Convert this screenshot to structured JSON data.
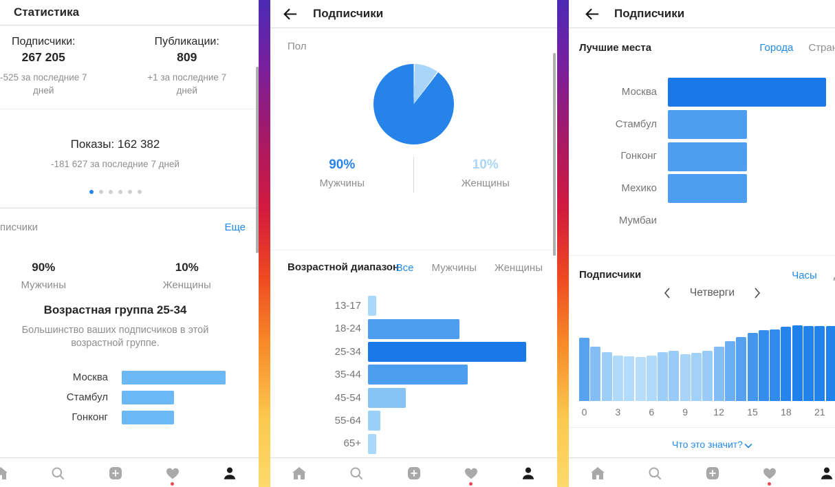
{
  "colors": {
    "accent_blue": "#2583e9",
    "link_blue": "#2189e9",
    "light_blue": "#a9d6f8",
    "text_dark": "#262626",
    "text_gray": "#8e8e8e",
    "divider": "#dbdbdb",
    "divider_light": "#efefef",
    "dot_active": "#2584e8",
    "dot_inactive": "#d0d0d0",
    "nav_inactive": "#a9a9a9",
    "nav_active": "#1b1b1b",
    "badge_red": "#ed4956",
    "scrollbar": "#9b9b9b",
    "separator_gradient": [
      "#4b2ab5",
      "#7a1f9c",
      "#a81964",
      "#d31a3e",
      "#ee4a21",
      "#f88c28",
      "#fbc94e",
      "#fdd96b"
    ]
  },
  "panel_stats": {
    "title": "Статистика",
    "stats": [
      {
        "label": "Подписчики:",
        "value": "267 205",
        "delta": "-525 за последние 7 дней"
      },
      {
        "label": "Публикации:",
        "value": "809",
        "delta": "+1 за последние 7 дней"
      }
    ],
    "impressions": {
      "headline": "Показы: 162 382",
      "delta": "-181 627 за последние 7 дней"
    },
    "pager": {
      "count": 6,
      "active": 0
    },
    "followers": {
      "section_title": "писчики",
      "more": "Еще",
      "gender": [
        {
          "value": "90%",
          "label": "Мужчины"
        },
        {
          "value": "10%",
          "label": "Женщины"
        }
      ],
      "age_headline": "Возрастная группа 25-34",
      "age_note": "Большинство ваших подписчиков в этой возрастной группе."
    }
  },
  "panel_gender": {
    "title": "Подписчики",
    "section_gender": {
      "label": "Пол",
      "legend": [
        {
          "value": "90%",
          "label": "Мужчины"
        },
        {
          "value": "10%",
          "label": "Женщины"
        }
      ]
    },
    "section_age": {
      "label": "Возрастной диапазон",
      "tabs": [
        "Все",
        "Мужчины",
        "Женщины"
      ],
      "active_tab": 0
    }
  },
  "panel_places": {
    "title": "Подписчики",
    "section_places": {
      "label": "Лучшие места",
      "tabs": [
        "Города",
        "Стран"
      ],
      "active_tab": 0
    },
    "section_hours": {
      "label": "Подписчики",
      "tabs": [
        "Часы",
        "Д"
      ],
      "active_tab": 0,
      "carousel": {
        "value": "Четверги"
      },
      "footnote": "Что это значит?"
    }
  },
  "nav": {
    "items": [
      {
        "name": "home"
      },
      {
        "name": "search"
      },
      {
        "name": "new-post"
      },
      {
        "name": "activity",
        "badge": true
      },
      {
        "name": "profile",
        "active": true
      }
    ]
  },
  "chart_data": [
    {
      "id": "stats-top-cities",
      "type": "bar",
      "orientation": "horizontal",
      "categories": [
        "Москва",
        "Стамбул",
        "Гонконг"
      ],
      "values": [
        1,
        0.5,
        0.5
      ],
      "unit": "fraction_of_max_bar",
      "color": "#6cb8f5"
    },
    {
      "id": "gender-pie",
      "type": "pie",
      "labels": [
        "Мужчины",
        "Женщины"
      ],
      "values": [
        90,
        10
      ],
      "colors": [
        "#2583e9",
        "#a9d6f8"
      ],
      "draw_order": [
        1,
        0
      ],
      "start_angle_deg": 0
    },
    {
      "id": "age-range",
      "type": "bar",
      "orientation": "horizontal",
      "categories": [
        "13-17",
        "18-24",
        "25-34",
        "35-44",
        "45-54",
        "55-64",
        "65+"
      ],
      "values": [
        0.05,
        0.58,
        1,
        0.63,
        0.24,
        0.08,
        0.05
      ],
      "unit": "fraction_of_max_bar",
      "colors": [
        "#a8d8fa",
        "#4d9ef0",
        "#1b78e8",
        "#4d9ef0",
        "#87c4f6",
        "#9bd0f9",
        "#a8d8fa"
      ]
    },
    {
      "id": "top-cities",
      "type": "bar",
      "orientation": "horizontal",
      "categories": [
        "Москва",
        "Стамбул",
        "Гонконг",
        "Мехико",
        "Мумбаи"
      ],
      "values": [
        1,
        0.5,
        0.5,
        0.5,
        0
      ],
      "unit": "fraction_of_max_bar",
      "colors": [
        "#1b78e8",
        "#4d9ef0",
        "#4d9ef0",
        "#4d9ef0",
        "#4d9ef0"
      ]
    },
    {
      "id": "followers-by-hour",
      "type": "bar",
      "orientation": "vertical",
      "categories": [
        "0",
        "1",
        "2",
        "3",
        "4",
        "5",
        "6",
        "7",
        "8",
        "9",
        "10",
        "11",
        "12",
        "13",
        "14",
        "15",
        "16",
        "17",
        "18",
        "19",
        "20",
        "21",
        "22",
        "23"
      ],
      "values": [
        0.84,
        0.72,
        0.65,
        0.6,
        0.59,
        0.58,
        0.6,
        0.65,
        0.66,
        0.62,
        0.64,
        0.66,
        0.72,
        0.79,
        0.85,
        0.9,
        0.94,
        0.95,
        0.98,
        1,
        0.99,
        0.99,
        0.99,
        0.98
      ],
      "unit": "fraction_of_max_bar",
      "tick_labels": [
        "0",
        "3",
        "6",
        "9",
        "12",
        "15",
        "18",
        "21"
      ],
      "color_scale": {
        "min": "#b7ddfb",
        "max": "#1e80ea"
      }
    }
  ]
}
